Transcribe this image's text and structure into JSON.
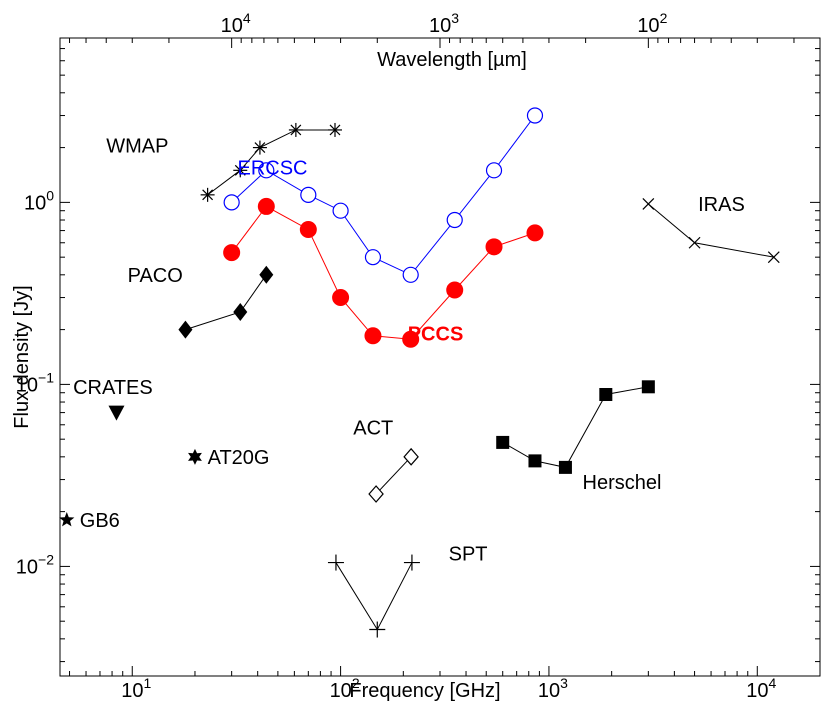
{
  "chart_data": {
    "type": "scatter",
    "xlabel": "Frequency [GHz]",
    "ylabel": "Flux density [Jy]",
    "top_axis_label": "Wavelength [µm]",
    "x_scale": "log",
    "y_scale": "log",
    "xlim": [
      4.5,
      20000
    ],
    "ylim": [
      0.0025,
      8
    ],
    "grid": false,
    "x_ticks": [
      {
        "value": 10,
        "mantissa": "10",
        "exponent": "1"
      },
      {
        "value": 100,
        "mantissa": "10",
        "exponent": "2"
      },
      {
        "value": 1000,
        "mantissa": "10",
        "exponent": "3"
      },
      {
        "value": 10000,
        "mantissa": "10",
        "exponent": "4"
      }
    ],
    "y_ticks": [
      {
        "value": 0.01,
        "mantissa": "10",
        "exponent": "−2"
      },
      {
        "value": 0.1,
        "mantissa": "10",
        "exponent": "−1"
      },
      {
        "value": 1,
        "mantissa": "10",
        "exponent": "0"
      }
    ],
    "top_ticks": [
      {
        "value": 10000,
        "mantissa": "10",
        "exponent": "4"
      },
      {
        "value": 1000,
        "mantissa": "10",
        "exponent": "3"
      },
      {
        "value": 100,
        "mantissa": "10",
        "exponent": "2"
      }
    ],
    "series": [
      {
        "name": "WMAP",
        "marker": "asterisk",
        "color": "#000000",
        "line": true,
        "x": [
          23,
          33,
          41,
          61,
          94
        ],
        "y": [
          1.1,
          1.5,
          2.0,
          2.5,
          2.5
        ],
        "label_x": 7.5,
        "label_y": 2.05
      },
      {
        "name": "ERCSC",
        "marker": "open-circle",
        "color": "#0000ff",
        "line": true,
        "x": [
          30,
          44,
          70,
          100,
          143,
          217,
          353,
          545,
          857
        ],
        "y": [
          1.0,
          1.5,
          1.1,
          0.9,
          0.5,
          0.4,
          0.8,
          1.5,
          3.0
        ],
        "label_x": 32,
        "label_y": 1.55,
        "label_color": "#0000ff"
      },
      {
        "name": "PCCS",
        "marker": "filled-circle",
        "color": "#ff0000",
        "line": true,
        "x": [
          30,
          44,
          70,
          100,
          143,
          217,
          353,
          545,
          857
        ],
        "y": [
          0.53,
          0.95,
          0.71,
          0.3,
          0.185,
          0.177,
          0.33,
          0.57,
          0.68
        ],
        "label_x": 210,
        "label_y": 0.19,
        "label_color": "#ff0000",
        "label_bold": true
      },
      {
        "name": "PACO",
        "marker": "filled-diamond",
        "color": "#000000",
        "line": true,
        "x": [
          18,
          33,
          44
        ],
        "y": [
          0.2,
          0.25,
          0.4
        ],
        "label_x": 9.5,
        "label_y": 0.4
      },
      {
        "name": "CRATES",
        "marker": "filled-triangle-down",
        "color": "#000000",
        "line": false,
        "x": [
          8.4
        ],
        "y": [
          0.07
        ],
        "label_x": 5.2,
        "label_y": 0.097
      },
      {
        "name": "AT20G",
        "marker": "filled-hexagram",
        "color": "#000000",
        "line": false,
        "x": [
          20
        ],
        "y": [
          0.04
        ],
        "label_x": 23,
        "label_y": 0.04
      },
      {
        "name": "GB6",
        "marker": "filled-star",
        "color": "#000000",
        "line": false,
        "x": [
          4.85
        ],
        "y": [
          0.018
        ],
        "label_x": 5.6,
        "label_y": 0.018
      },
      {
        "name": "ACT",
        "marker": "open-diamond",
        "color": "#000000",
        "line": true,
        "x": [
          148,
          218
        ],
        "y": [
          0.025,
          0.04
        ],
        "label_x": 115,
        "label_y": 0.058
      },
      {
        "name": "SPT",
        "marker": "plus",
        "color": "#000000",
        "line": true,
        "x": [
          95,
          150,
          220
        ],
        "y": [
          0.0105,
          0.0045,
          0.0105
        ],
        "label_x": 330,
        "label_y": 0.0118
      },
      {
        "name": "Herschel",
        "marker": "filled-square",
        "color": "#000000",
        "line": true,
        "x": [
          600,
          857,
          1200,
          1875,
          3000
        ],
        "y": [
          0.048,
          0.038,
          0.035,
          0.088,
          0.097
        ],
        "label_x": 1450,
        "label_y": 0.029
      },
      {
        "name": "IRAS",
        "marker": "cross",
        "color": "#000000",
        "line": true,
        "x": [
          3000,
          5000,
          12000
        ],
        "y": [
          0.98,
          0.6,
          0.5
        ],
        "label_x": 5200,
        "label_y": 0.98
      }
    ]
  }
}
